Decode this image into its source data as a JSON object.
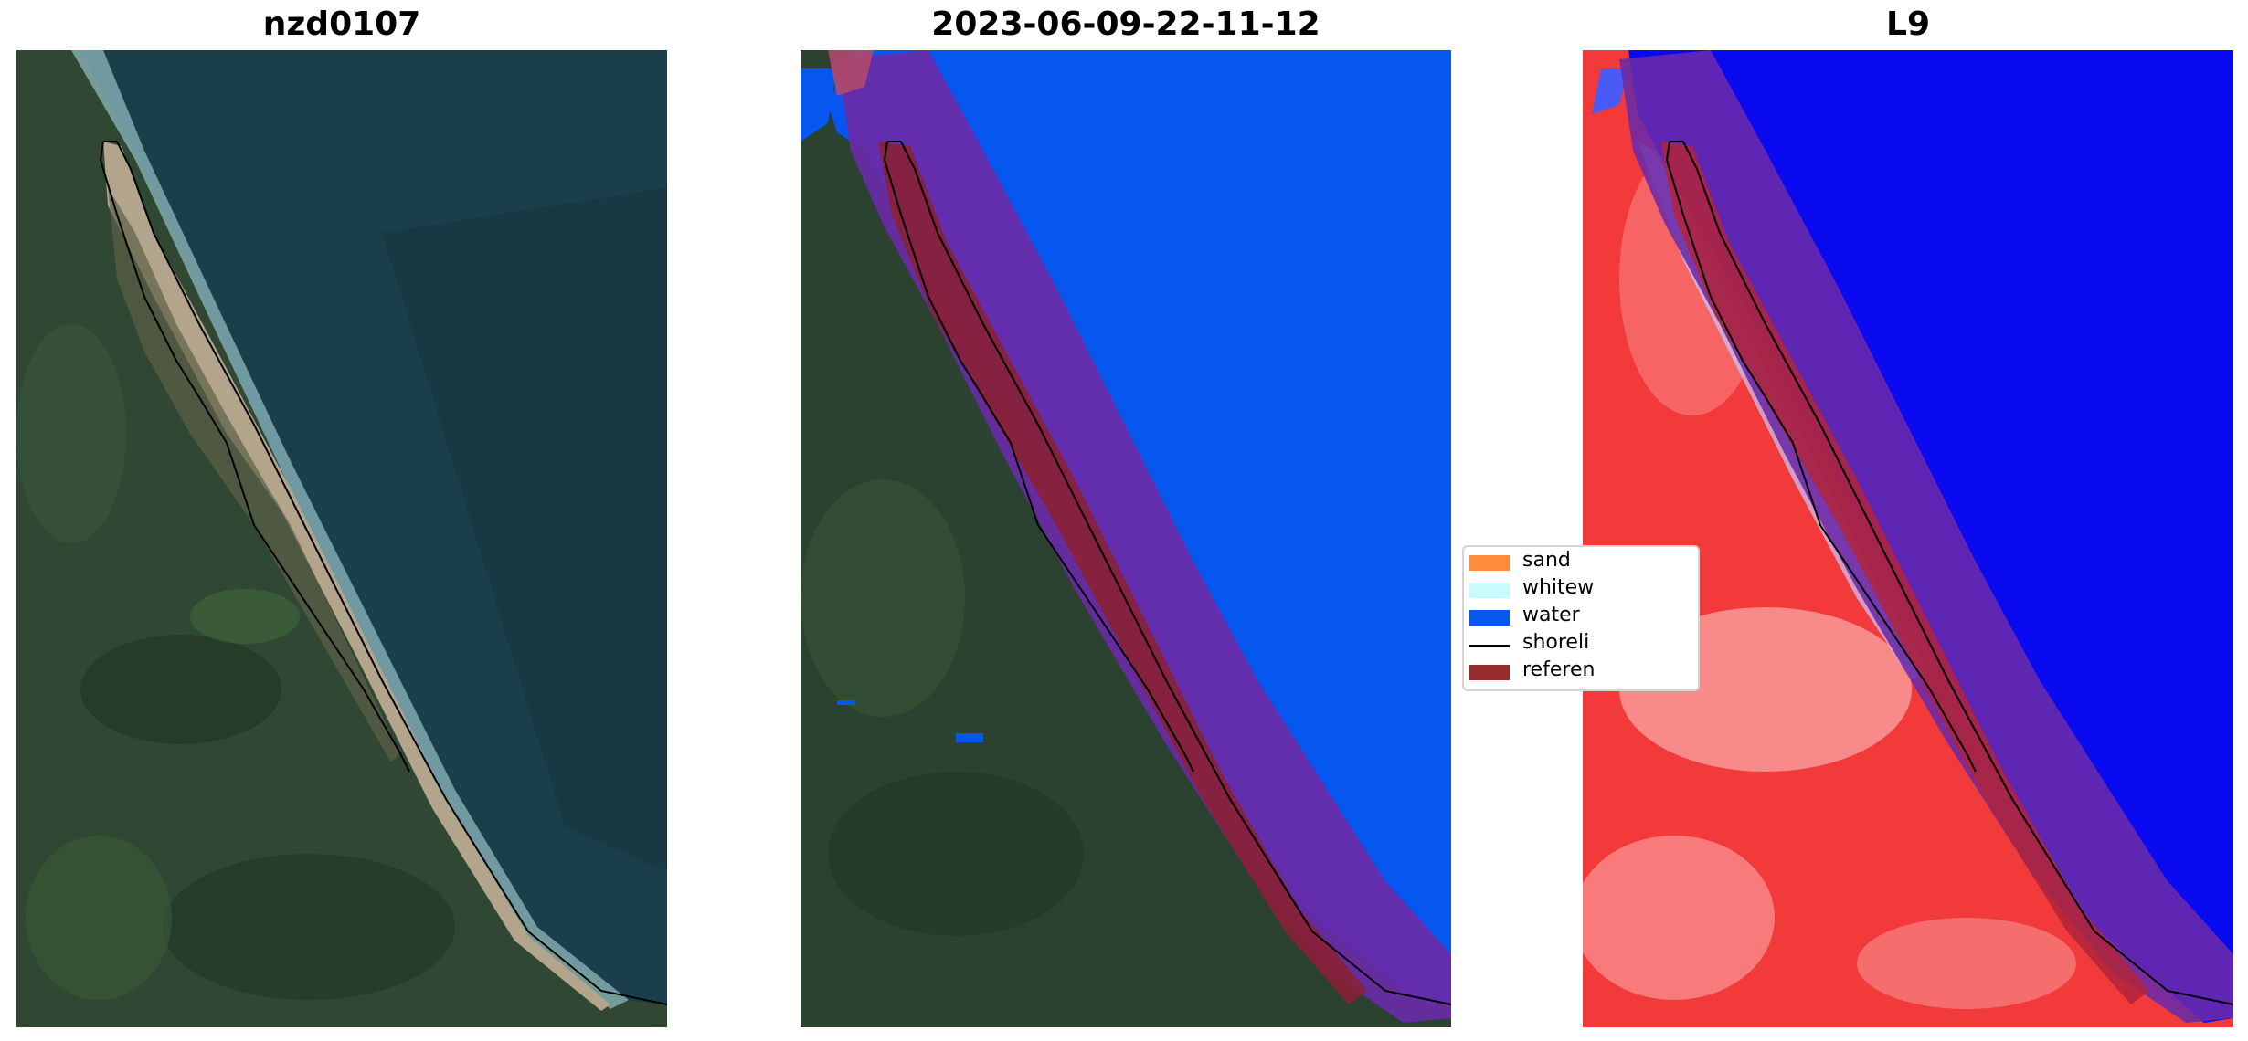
{
  "panels": [
    {
      "title": "nzd0107"
    },
    {
      "title": "2023-06-09-22-11-12"
    },
    {
      "title": "L9"
    }
  ],
  "legend": {
    "items": [
      {
        "label": "sand",
        "color": "#ff8c3a",
        "kind": "patch"
      },
      {
        "label": "whitew",
        "color": "#c8fcfc",
        "kind": "patch"
      },
      {
        "label": "water",
        "color": "#0557f0",
        "kind": "patch"
      },
      {
        "label": "shoreli",
        "color": "#000000",
        "kind": "line"
      },
      {
        "label": "referen",
        "color": "#972d2d",
        "kind": "patch"
      }
    ]
  },
  "colors": {
    "ocean": "#1a3d4a",
    "land": "#2e4632",
    "beach": "#b4a88c",
    "water_class": "#0557f0",
    "buffer": "#6a2aa8",
    "reference": "#8a2035",
    "index_land": "#f23a3a",
    "index_water": "#0a0af0"
  }
}
